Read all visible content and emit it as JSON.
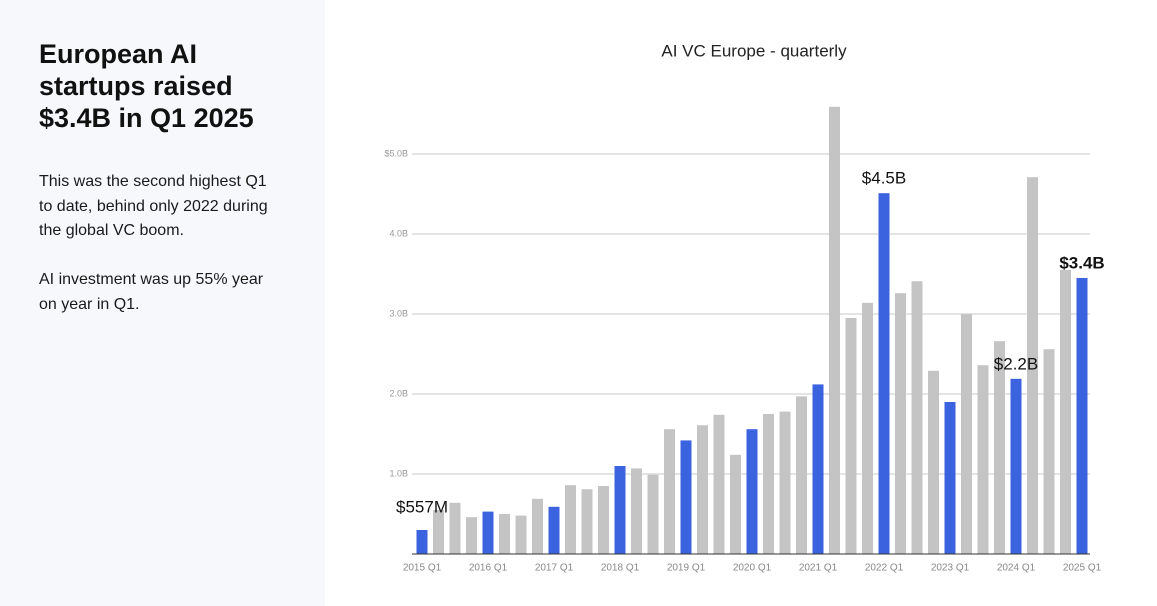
{
  "panel": {
    "headline": "European AI startups raised $3.4B in Q1 2025",
    "paragraphs": [
      "This was the second highest Q1 to date, behind only 2022 during the global VC boom.",
      "AI investment was up 55% year on year in Q1."
    ]
  },
  "chart_data": {
    "type": "bar",
    "title": "AI VC Europe - quarterly",
    "categories": [
      "2015 Q1",
      null,
      null,
      null,
      "2016 Q1",
      null,
      null,
      null,
      "2017 Q1",
      null,
      null,
      null,
      "2018 Q1",
      null,
      null,
      null,
      "2019 Q1",
      null,
      null,
      null,
      "2020 Q1",
      null,
      null,
      null,
      "2021 Q1",
      null,
      null,
      null,
      "2022 Q1",
      null,
      null,
      null,
      "2023 Q1",
      null,
      null,
      null,
      "2024 Q1",
      null,
      null,
      null,
      "2025 Q1"
    ],
    "values": [
      0.3,
      0.55,
      0.64,
      0.46,
      0.53,
      0.5,
      0.48,
      0.69,
      0.59,
      0.86,
      0.81,
      0.85,
      1.1,
      1.07,
      0.99,
      1.56,
      1.42,
      1.61,
      1.74,
      1.24,
      1.56,
      1.75,
      1.78,
      1.97,
      2.12,
      5.59,
      2.95,
      3.14,
      4.51,
      3.26,
      3.41,
      2.29,
      1.9,
      3.0,
      2.36,
      2.66,
      2.19,
      4.71,
      2.56,
      3.55,
      3.45
    ],
    "color": "#c4c4c4",
    "highlight_color": "#3b63e0",
    "ylim": [
      0,
      5.6
    ],
    "yticks": [
      {
        "value": 1,
        "label": "1.0B"
      },
      {
        "value": 2,
        "label": "2.0B"
      },
      {
        "value": 3,
        "label": "3.0B"
      },
      {
        "value": 4,
        "label": "4.0B"
      },
      {
        "value": 5,
        "label": "$5.0B"
      }
    ],
    "grid": true,
    "annotations": [
      "$557M",
      "$4.5B",
      "$2.2B",
      "$3.4B"
    ]
  }
}
